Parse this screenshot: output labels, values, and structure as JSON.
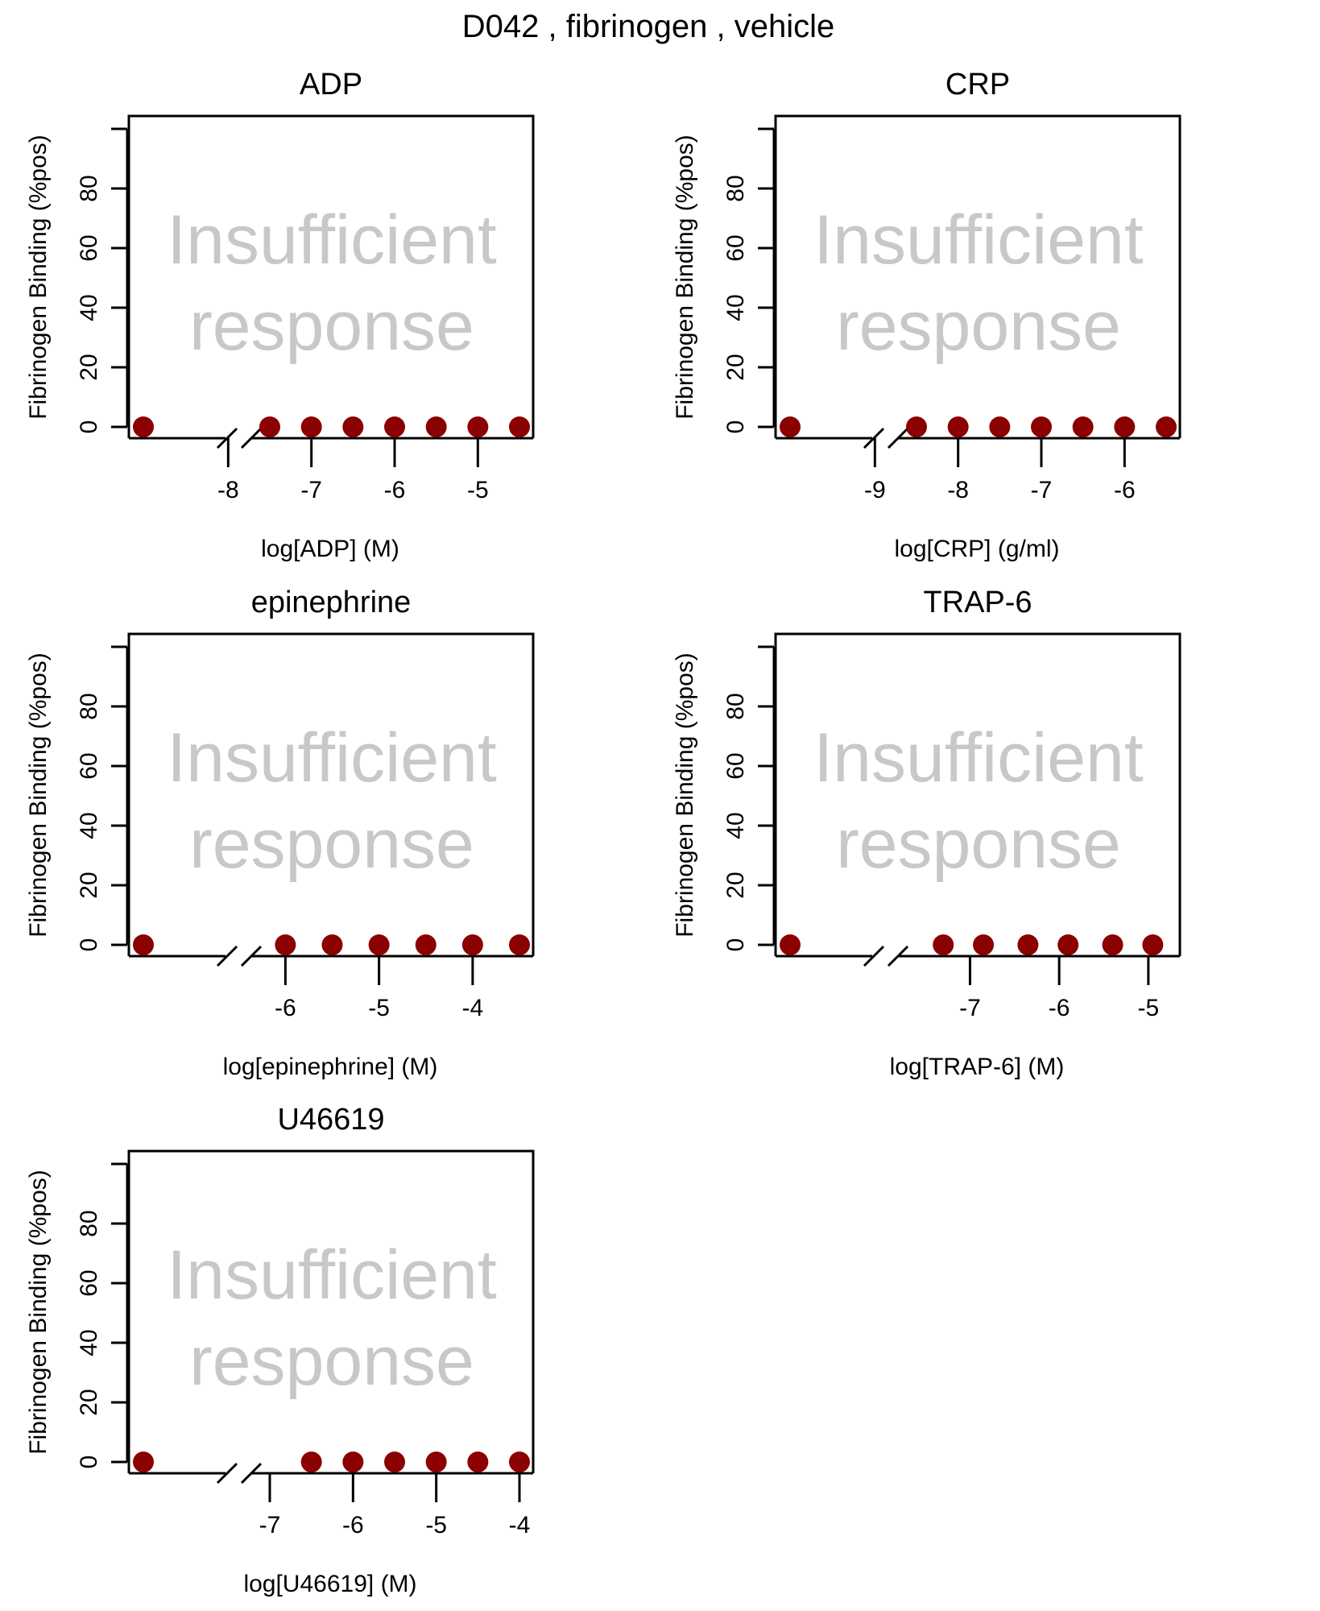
{
  "figure_title": "D042 ,  fibrinogen ,  vehicle",
  "insufficient_text": [
    "Insufficient",
    "response"
  ],
  "colors": {
    "points": "#8b0000",
    "message": "#c8c8c8",
    "axes": "#000000"
  },
  "chart_data": [
    {
      "type": "scatter",
      "title": "ADP",
      "xlabel": "log[ADP] (M)",
      "ylabel": "Fibrinogen Binding (%pos)",
      "ylim": [
        0,
        100
      ],
      "yticks": [
        "0",
        "20",
        "40",
        "60",
        "80"
      ],
      "xticks": [
        "-8",
        "-7",
        "-6",
        "-5"
      ],
      "x_tick_values": [
        -8,
        -7,
        -6,
        -5
      ],
      "xlim": [
        -9.0,
        -4.5
      ],
      "axis_break": true,
      "has_zero_dose": true,
      "x": [
        -7.5,
        -7,
        -6.5,
        -6,
        -5.5,
        -5,
        -4.5
      ],
      "y": [
        0,
        0,
        0,
        0,
        0,
        0,
        0
      ],
      "zero_dose_y": 0
    },
    {
      "type": "scatter",
      "title": "CRP",
      "xlabel": "log[CRP] (g/ml)",
      "ylabel": "Fibrinogen Binding (%pos)",
      "ylim": [
        0,
        100
      ],
      "yticks": [
        "0",
        "20",
        "40",
        "60",
        "80"
      ],
      "xticks": [
        "-9",
        "-8",
        "-7",
        "-6"
      ],
      "x_tick_values": [
        -9,
        -8,
        -7,
        -6
      ],
      "xlim": [
        -10.0,
        -5.5
      ],
      "axis_break": true,
      "has_zero_dose": true,
      "x": [
        -8.5,
        -8,
        -7.5,
        -7,
        -6.5,
        -6,
        -5.5
      ],
      "y": [
        0,
        0,
        0,
        0,
        0,
        0,
        0
      ],
      "zero_dose_y": 0
    },
    {
      "type": "scatter",
      "title": "epinephrine",
      "xlabel": "log[epinephrine] (M)",
      "ylabel": "Fibrinogen Binding (%pos)",
      "ylim": [
        0,
        100
      ],
      "yticks": [
        "0",
        "20",
        "40",
        "60",
        "80"
      ],
      "xticks": [
        "-6",
        "-5",
        "-4"
      ],
      "x_tick_values": [
        -6,
        -5,
        -4
      ],
      "xlim": [
        -7.5,
        -3.5
      ],
      "axis_break": true,
      "has_zero_dose": true,
      "x": [
        -6,
        -5.5,
        -5,
        -4.5,
        -4,
        -3.5
      ],
      "y": [
        0,
        0,
        0,
        0,
        0,
        0
      ],
      "zero_dose_y": 0
    },
    {
      "type": "scatter",
      "title": "TRAP-6",
      "xlabel": "log[TRAP-6] (M)",
      "ylabel": "Fibrinogen Binding (%pos)",
      "ylim": [
        0,
        100
      ],
      "yticks": [
        "0",
        "20",
        "40",
        "60",
        "80"
      ],
      "xticks": [
        "-7",
        "-6",
        "-5"
      ],
      "x_tick_values": [
        -7,
        -6,
        -5
      ],
      "xlim": [
        -9.0,
        -4.8
      ],
      "axis_break": true,
      "has_zero_dose": true,
      "x": [
        -7.3,
        -6.85,
        -6.35,
        -5.9,
        -5.4,
        -4.95
      ],
      "y": [
        0,
        0,
        0,
        0,
        0,
        0
      ],
      "zero_dose_y": 0
    },
    {
      "type": "scatter",
      "title": "U46619",
      "xlabel": "log[U46619] (M)",
      "ylabel": "Fibrinogen Binding (%pos)",
      "ylim": [
        0,
        100
      ],
      "yticks": [
        "0",
        "20",
        "40",
        "60",
        "80"
      ],
      "xticks": [
        "-7",
        "-6",
        "-5",
        "-4"
      ],
      "x_tick_values": [
        -7,
        -6,
        -5,
        -4
      ],
      "xlim": [
        -8.5,
        -4.0
      ],
      "axis_break": true,
      "has_zero_dose": true,
      "x": [
        -6.5,
        -6,
        -5.5,
        -5,
        -4.5,
        -4
      ],
      "y": [
        0,
        0,
        0,
        0,
        0,
        0
      ],
      "zero_dose_y": 0
    }
  ]
}
